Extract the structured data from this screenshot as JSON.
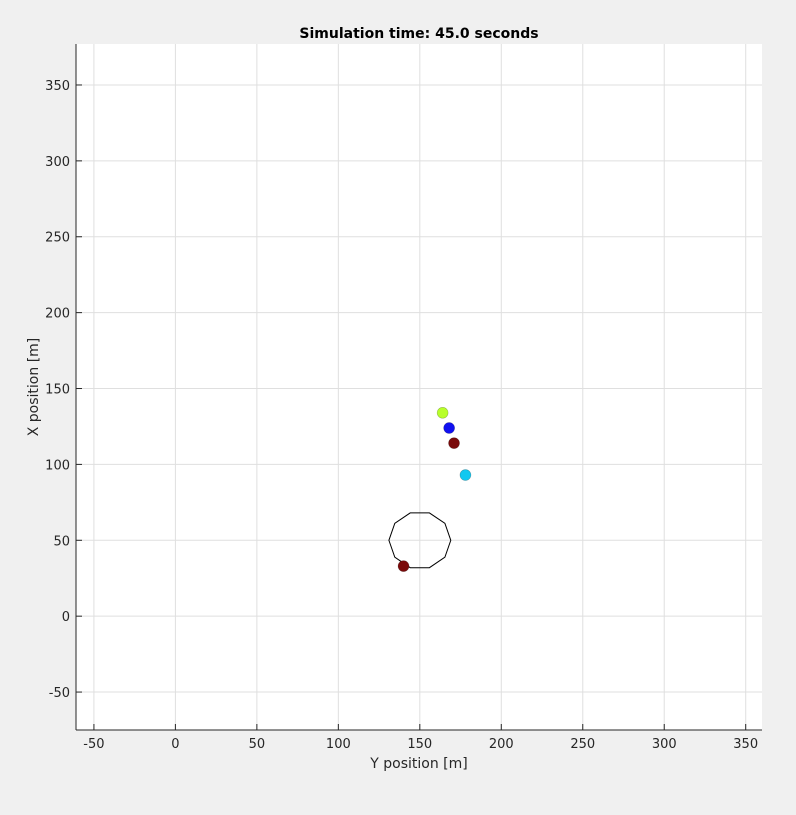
{
  "chart_data": {
    "type": "scatter",
    "title": "Simulation time: 45.0 seconds",
    "xlabel": "Y position [m]",
    "ylabel": "X position [m]",
    "xlim": [
      -61,
      360
    ],
    "ylim": [
      -75,
      377
    ],
    "xticks": [
      -50,
      0,
      50,
      100,
      150,
      200,
      250,
      300,
      350
    ],
    "yticks": [
      -50,
      0,
      50,
      100,
      150,
      200,
      250,
      300,
      350
    ],
    "grid": true,
    "points": [
      {
        "x": 164,
        "y": 134,
        "color": "#b8ff2a"
      },
      {
        "x": 168,
        "y": 124,
        "color": "#1010f0"
      },
      {
        "x": 171,
        "y": 114,
        "color": "#7a0a0a"
      },
      {
        "x": 178,
        "y": 93,
        "color": "#10c8f0"
      },
      {
        "x": 140,
        "y": 33,
        "color": "#7a0a0a"
      }
    ],
    "obstacle": {
      "center": [
        150,
        50
      ],
      "radius": 19,
      "sides": 10,
      "color": "#000000"
    }
  }
}
